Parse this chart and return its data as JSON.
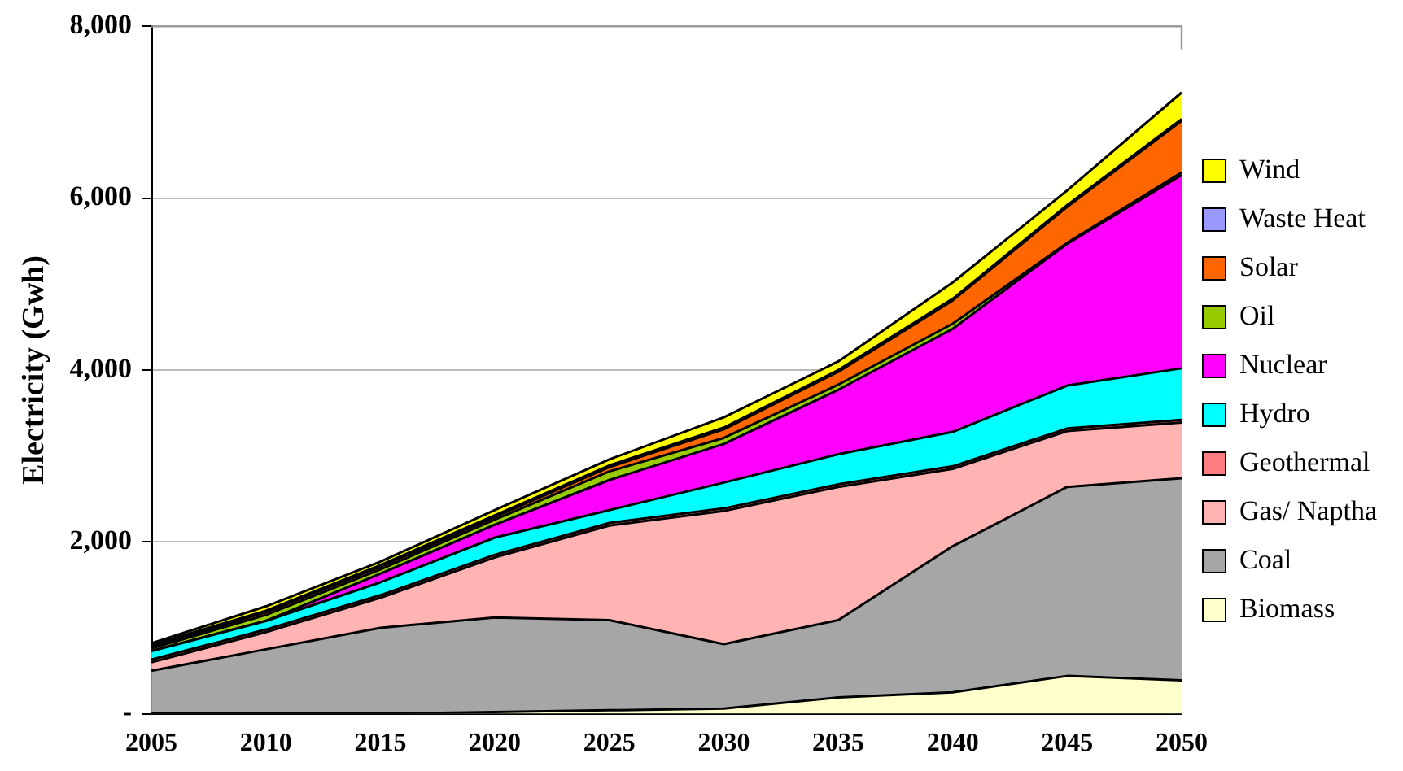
{
  "chart_data": {
    "type": "area",
    "stacked": true,
    "ylabel": "Electricity (Gwh)",
    "categories": [
      "2005",
      "2010",
      "2015",
      "2020",
      "2025",
      "2030",
      "2035",
      "2040",
      "2045",
      "2050"
    ],
    "ylim": [
      0,
      8000
    ],
    "yticks": [
      {
        "value": 0,
        "label": "-"
      },
      {
        "value": 2000,
        "label": "2,000"
      },
      {
        "value": 4000,
        "label": "4,000"
      },
      {
        "value": 6000,
        "label": "6,000"
      },
      {
        "value": 8000,
        "label": "8,000"
      }
    ],
    "grid": "y",
    "legend": "right",
    "series": [
      {
        "name": "Biomass",
        "color": "#ffffcc",
        "values": [
          0,
          0,
          0,
          20,
          40,
          60,
          190,
          250,
          440,
          390
        ]
      },
      {
        "name": "Coal",
        "color": "#a6a6a6",
        "values": [
          500,
          750,
          1000,
          1100,
          1050,
          750,
          900,
          1700,
          2200,
          2350
        ]
      },
      {
        "name": "Gas/ Naptha",
        "color": "#ffb3b3",
        "values": [
          100,
          200,
          350,
          700,
          1100,
          1550,
          1550,
          900,
          650,
          650
        ]
      },
      {
        "name": "Geothermal",
        "color": "#ff7c80",
        "values": [
          30,
          30,
          30,
          30,
          30,
          30,
          30,
          30,
          30,
          30
        ]
      },
      {
        "name": "Hydro",
        "color": "#00ffff",
        "values": [
          100,
          100,
          150,
          200,
          150,
          300,
          350,
          400,
          500,
          600
        ]
      },
      {
        "name": "Nuclear",
        "color": "#ff00ff",
        "values": [
          0,
          0,
          100,
          150,
          350,
          450,
          750,
          1200,
          1650,
          2250
        ]
      },
      {
        "name": "Oil",
        "color": "#99cc00",
        "values": [
          30,
          70,
          50,
          60,
          100,
          70,
          60,
          60,
          10,
          30
        ]
      },
      {
        "name": "Solar",
        "color": "#ff6600",
        "values": [
          20,
          30,
          30,
          30,
          50,
          100,
          150,
          270,
          420,
          600
        ]
      },
      {
        "name": "Waste Heat",
        "color": "#9999ff",
        "values": [
          20,
          20,
          20,
          20,
          20,
          20,
          20,
          20,
          20,
          20
        ]
      },
      {
        "name": "Wind",
        "color": "#ffff00",
        "values": [
          20,
          50,
          40,
          60,
          70,
          120,
          100,
          190,
          170,
          310
        ]
      }
    ]
  }
}
